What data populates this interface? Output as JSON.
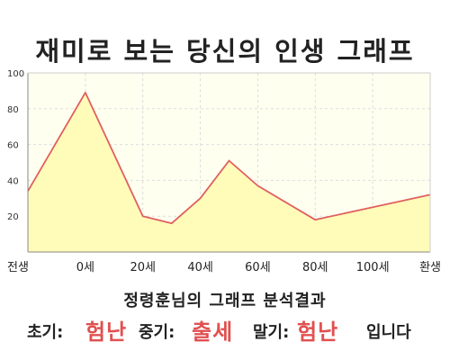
{
  "header": {
    "title": "재미로 보는 당신의 인생 그래프"
  },
  "chart_data": {
    "type": "area",
    "x_ticks": [
      "전생",
      "0세",
      "20세",
      "40세",
      "60세",
      "80세",
      "100세",
      "환생"
    ],
    "y_ticks": [
      "100",
      "80",
      "60",
      "40",
      "20"
    ],
    "ylim": [
      0,
      100
    ],
    "x": [
      -20,
      0,
      20,
      30,
      40,
      50,
      60,
      80,
      100,
      120
    ],
    "y": [
      34,
      89,
      20,
      16,
      30,
      51,
      37,
      18,
      25,
      32
    ],
    "grid": true,
    "line_color": "#e06060",
    "fill_color": "#fffbb8",
    "plot_bg": "#fffff0"
  },
  "footer": {
    "subtitle": "정령훈님의 그래프 분석결과",
    "early_label": "초기:",
    "early_value": "험난",
    "middle_label": "중기:",
    "middle_value": "출세",
    "late_label": "말기:",
    "late_value": "험난",
    "ending": "입니다"
  }
}
